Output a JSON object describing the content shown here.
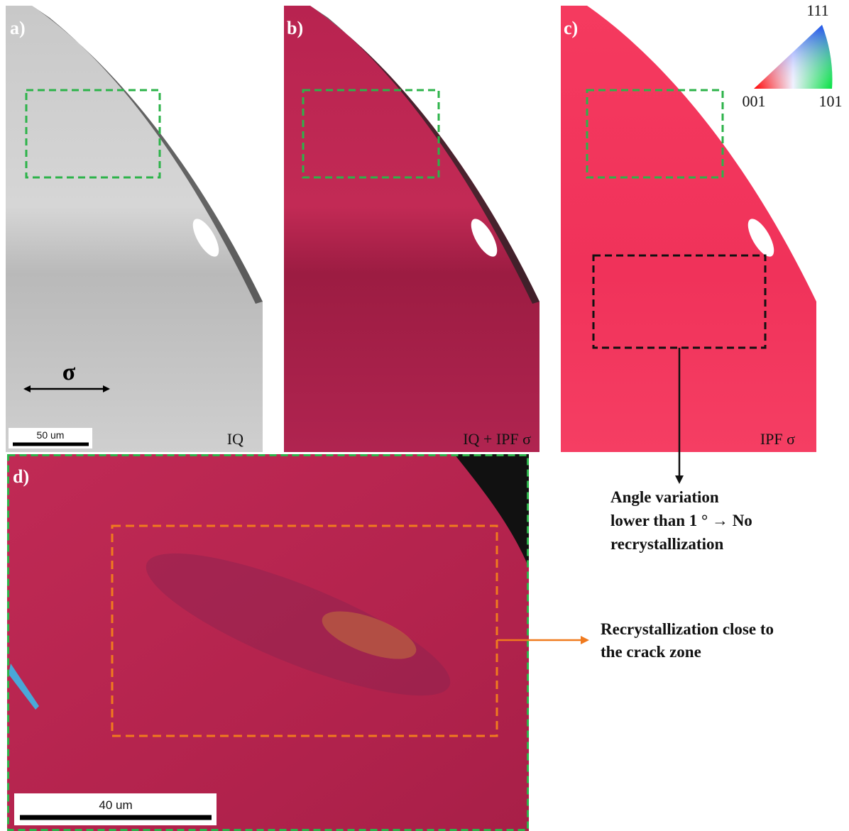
{
  "panels": [
    {
      "label": "a)",
      "caption": "IQ",
      "scale_bar": "50 um",
      "stress": "σ"
    },
    {
      "label": "b)",
      "caption": "IQ + IPF σ"
    },
    {
      "label": "c)",
      "caption": "IPF σ"
    },
    {
      "label": "d)",
      "scale_bar": "40 um"
    }
  ],
  "ipf_legend": {
    "top": "111",
    "left": "001",
    "right": "101"
  },
  "annotations": [
    {
      "lines": [
        "Angle variation",
        "lower than 1 ° → No",
        "recrystallization"
      ]
    },
    {
      "lines": [
        "Recrystallization close to",
        "the crack zone"
      ]
    }
  ]
}
